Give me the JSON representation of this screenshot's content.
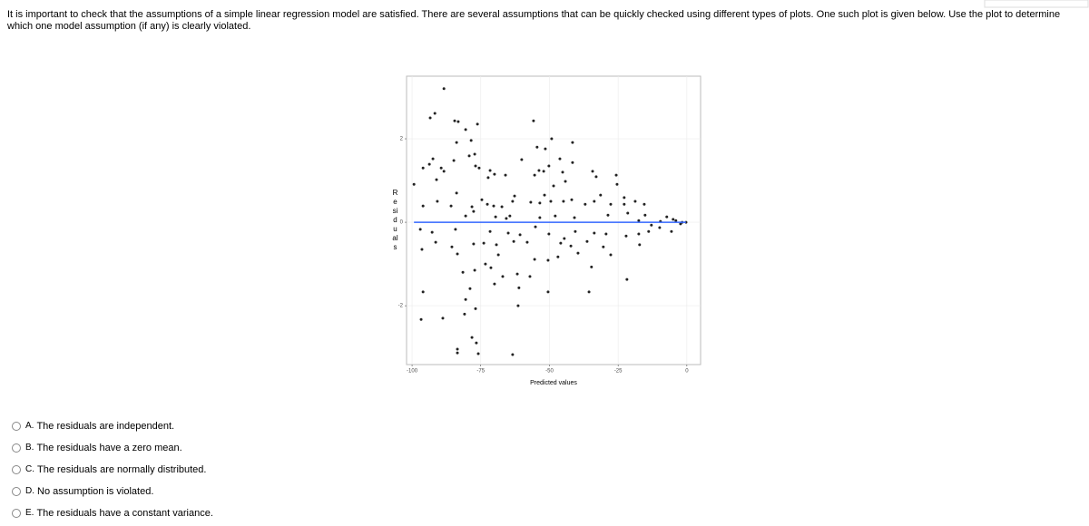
{
  "question": "It is important to check that the assumptions of a simple linear regression model are satisfied.  There are several assumptions that can be quickly checked using different types of plots.  One such plot is given below.  Use the plot to determine which one model assumption (if any) is clearly violated.",
  "chart_data": {
    "type": "scatter",
    "x_label": "Predicted values",
    "y_label": "Residuals",
    "color": "#222222",
    "x": [
      -88.4,
      -93.4,
      -91.7,
      -84.5,
      -83.2,
      -76.2,
      -55.8,
      -80.5,
      -78.5,
      -83.8,
      -49.2,
      -41.6,
      -54.5,
      -51.5,
      -96,
      -93.7,
      -89.4,
      -88.4,
      -92.4,
      -84.8,
      -79.2,
      -77.2,
      -76.9,
      -75.6,
      -71.6,
      -72.3,
      -70,
      -66,
      -60.1,
      -55.4,
      -53.8,
      -52.1,
      -46.2,
      -50.2,
      -45.2,
      -44.2,
      -48.5,
      -51.8,
      -41.6,
      -34.3,
      -33,
      -25.7,
      -25.4,
      -22.8,
      -31.4,
      -27.7,
      -91.1,
      -99.3,
      -96,
      -90.8,
      -83.8,
      -85.8,
      -78.2,
      -74.6,
      -72.6,
      -70.3,
      -67.3,
      -63.4,
      -62.7,
      -56.8,
      -53.5,
      -49.5,
      -44.9,
      -41.9,
      -37,
      -33.7,
      -22.8,
      -18.8,
      -15.5,
      -80.5,
      -77.6,
      -69.6,
      -65.7,
      -64.4,
      -53.5,
      -47.9,
      -40.9,
      -28.7,
      -21.5,
      -15.2,
      -7.3,
      -4,
      -1.7,
      -2.3,
      -0.3,
      -5,
      -9.6,
      -12.9,
      -17.5,
      -97,
      -92.7,
      -84.2,
      -71.6,
      -65,
      -60.7,
      -55.1,
      -50.2,
      -44.6,
      -40.6,
      -33.7,
      -29.4,
      -22.1,
      -17.5,
      -13.9,
      -9.9,
      -5.6,
      -91.4,
      -85.5,
      -77.6,
      -73.9,
      -69.3,
      -63,
      -58.1,
      -45.9,
      -42.2,
      -36.3,
      -30.4,
      -17.2,
      -96.4,
      -83.5,
      -73.3,
      -68.6,
      -55.4,
      -50.5,
      -46.9,
      -39.6,
      -34.7,
      -27.7,
      -81.5,
      -77.2,
      -71.3,
      -67,
      -61.7,
      -57.1,
      -96,
      -78.9,
      -70,
      -61.1,
      -50.5,
      -35.6,
      -21.8,
      -80.5,
      -76.9,
      -61.4,
      -80.9,
      -96.7,
      -88.8,
      -78.2,
      -76.6,
      -83.5,
      -83.5,
      -75.9,
      -63.4
    ],
    "y": [
      3.2,
      2.5,
      2.61,
      2.43,
      2.41,
      2.35,
      2.43,
      2.22,
      1.96,
      1.91,
      2,
      1.91,
      1.8,
      1.76,
      1.3,
      1.39,
      1.3,
      1.22,
      1.52,
      1.48,
      1.59,
      1.63,
      1.35,
      1.3,
      1.24,
      1.07,
      1.15,
      1.13,
      1.5,
      1.13,
      1.24,
      1.22,
      1.52,
      1.35,
      1.2,
      0.98,
      0.87,
      0.65,
      1.43,
      1.22,
      1.09,
      1.13,
      0.91,
      0.59,
      0.65,
      0.43,
      1.02,
      0.91,
      0.39,
      0.5,
      0.7,
      0.39,
      0.37,
      0.54,
      0.43,
      0.39,
      0.37,
      0.5,
      0.63,
      0.48,
      0.46,
      0.5,
      0.5,
      0.54,
      0.43,
      0.5,
      0.43,
      0.5,
      0.43,
      0.15,
      0.26,
      0.13,
      0.09,
      0.15,
      0.11,
      0.15,
      0.11,
      0.17,
      0.22,
      0.17,
      0.13,
      0.04,
      0,
      -0.04,
      0,
      0.07,
      0.02,
      -0.07,
      0.04,
      -0.17,
      -0.24,
      -0.17,
      -0.22,
      -0.26,
      -0.3,
      -0.11,
      -0.28,
      -0.39,
      -0.22,
      -0.26,
      -0.28,
      -0.33,
      -0.28,
      -0.22,
      -0.13,
      -0.22,
      -0.48,
      -0.59,
      -0.52,
      -0.5,
      -0.54,
      -0.46,
      -0.48,
      -0.5,
      -0.57,
      -0.46,
      -0.59,
      -0.54,
      -0.65,
      -0.76,
      -1,
      -0.78,
      -0.89,
      -0.91,
      -0.83,
      -0.74,
      -1.07,
      -0.78,
      -1.2,
      -1.15,
      -1.09,
      -1.3,
      -1.24,
      -1.3,
      -1.67,
      -1.59,
      -1.48,
      -1.57,
      -1.67,
      -1.67,
      -1.37,
      -1.85,
      -2.07,
      -2,
      -2.2,
      -2.33,
      -2.3,
      -2.76,
      -2.89,
      -3.04,
      -3.13,
      -3.15,
      -3.17
    ],
    "xlim": [
      -102,
      5
    ],
    "ylim": [
      -3.41,
      3.5
    ],
    "xticks": [
      -100,
      -75,
      -50,
      -25,
      0
    ],
    "yticks": [
      -2,
      0,
      2
    ],
    "grid": true,
    "reference_line": {
      "value": 0,
      "color": "#3366ff"
    }
  },
  "options": [
    {
      "letter": "A.",
      "text": "The residuals are independent."
    },
    {
      "letter": "B.",
      "text": "The residuals have a zero mean."
    },
    {
      "letter": "C.",
      "text": "The residuals are normally distributed."
    },
    {
      "letter": "D.",
      "text": "No assumption is violated."
    },
    {
      "letter": "E.",
      "text": "The residuals have a constant variance."
    }
  ]
}
